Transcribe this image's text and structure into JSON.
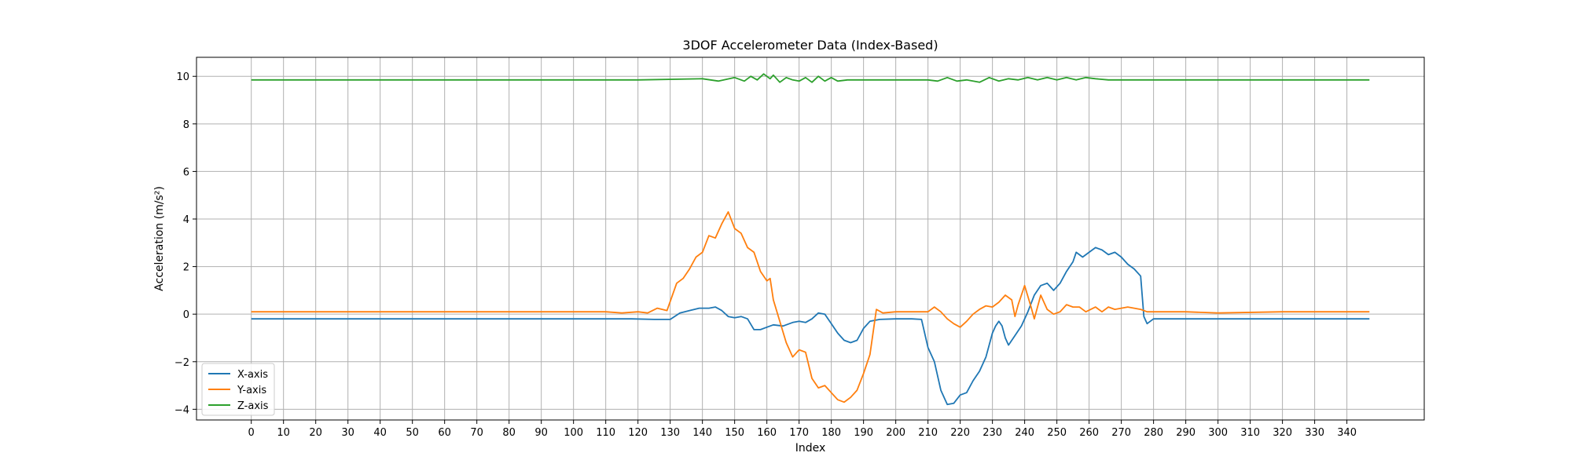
{
  "chart_data": {
    "type": "line",
    "title": "3DOF Accelerometer Data (Index-Based)",
    "xlabel": "Index",
    "ylabel": "Acceleration (m/s²)",
    "xlim": [
      -17,
      364
    ],
    "ylim": [
      -4.45,
      10.8
    ],
    "xticks": [
      0,
      10,
      20,
      30,
      40,
      50,
      60,
      70,
      80,
      90,
      100,
      110,
      120,
      130,
      140,
      150,
      160,
      170,
      180,
      190,
      200,
      210,
      220,
      230,
      240,
      250,
      260,
      270,
      280,
      290,
      300,
      310,
      320,
      330,
      340
    ],
    "yticks": [
      -4,
      -2,
      0,
      2,
      4,
      6,
      8,
      10
    ],
    "ytick_labels": [
      "−4",
      "−2",
      "0",
      "2",
      "4",
      "6",
      "8",
      "10"
    ],
    "grid": true,
    "legend_position": "lower-left",
    "series": [
      {
        "name": "X-axis",
        "color": "#1f77b4",
        "points": [
          [
            0,
            -0.2
          ],
          [
            20,
            -0.2
          ],
          [
            40,
            -0.2
          ],
          [
            60,
            -0.2
          ],
          [
            80,
            -0.2
          ],
          [
            100,
            -0.2
          ],
          [
            118,
            -0.2
          ],
          [
            125,
            -0.22
          ],
          [
            130,
            -0.22
          ],
          [
            133,
            0.05
          ],
          [
            136,
            0.15
          ],
          [
            139,
            0.25
          ],
          [
            142,
            0.25
          ],
          [
            144,
            0.3
          ],
          [
            146,
            0.15
          ],
          [
            148,
            -0.1
          ],
          [
            150,
            -0.15
          ],
          [
            152,
            -0.1
          ],
          [
            154,
            -0.2
          ],
          [
            156,
            -0.65
          ],
          [
            158,
            -0.65
          ],
          [
            160,
            -0.55
          ],
          [
            162,
            -0.45
          ],
          [
            165,
            -0.5
          ],
          [
            168,
            -0.35
          ],
          [
            170,
            -0.3
          ],
          [
            172,
            -0.35
          ],
          [
            174,
            -0.2
          ],
          [
            176,
            0.05
          ],
          [
            178,
            0.0
          ],
          [
            180,
            -0.4
          ],
          [
            182,
            -0.8
          ],
          [
            184,
            -1.1
          ],
          [
            186,
            -1.2
          ],
          [
            188,
            -1.1
          ],
          [
            190,
            -0.6
          ],
          [
            192,
            -0.3
          ],
          [
            195,
            -0.22
          ],
          [
            200,
            -0.2
          ],
          [
            205,
            -0.2
          ],
          [
            208,
            -0.22
          ],
          [
            210,
            -1.4
          ],
          [
            212,
            -2.0
          ],
          [
            214,
            -3.2
          ],
          [
            216,
            -3.8
          ],
          [
            218,
            -3.75
          ],
          [
            220,
            -3.4
          ],
          [
            222,
            -3.3
          ],
          [
            224,
            -2.8
          ],
          [
            226,
            -2.4
          ],
          [
            228,
            -1.8
          ],
          [
            230,
            -0.8
          ],
          [
            231,
            -0.5
          ],
          [
            232,
            -0.3
          ],
          [
            233,
            -0.5
          ],
          [
            234,
            -1.0
          ],
          [
            235,
            -1.3
          ],
          [
            237,
            -0.9
          ],
          [
            239,
            -0.5
          ],
          [
            241,
            0.1
          ],
          [
            243,
            0.8
          ],
          [
            245,
            1.2
          ],
          [
            247,
            1.3
          ],
          [
            249,
            1.0
          ],
          [
            251,
            1.3
          ],
          [
            253,
            1.8
          ],
          [
            255,
            2.2
          ],
          [
            256,
            2.6
          ],
          [
            258,
            2.4
          ],
          [
            260,
            2.6
          ],
          [
            262,
            2.8
          ],
          [
            264,
            2.7
          ],
          [
            266,
            2.5
          ],
          [
            268,
            2.6
          ],
          [
            270,
            2.4
          ],
          [
            272,
            2.1
          ],
          [
            274,
            1.9
          ],
          [
            276,
            1.6
          ],
          [
            277,
            -0.1
          ],
          [
            278,
            -0.4
          ],
          [
            280,
            -0.2
          ],
          [
            290,
            -0.2
          ],
          [
            300,
            -0.2
          ],
          [
            320,
            -0.2
          ],
          [
            340,
            -0.2
          ],
          [
            347,
            -0.2
          ]
        ]
      },
      {
        "name": "Y-axis",
        "color": "#ff7f0e",
        "points": [
          [
            0,
            0.1
          ],
          [
            20,
            0.1
          ],
          [
            40,
            0.1
          ],
          [
            60,
            0.1
          ],
          [
            80,
            0.1
          ],
          [
            100,
            0.1
          ],
          [
            110,
            0.1
          ],
          [
            115,
            0.05
          ],
          [
            120,
            0.1
          ],
          [
            123,
            0.05
          ],
          [
            126,
            0.25
          ],
          [
            129,
            0.15
          ],
          [
            132,
            1.3
          ],
          [
            134,
            1.5
          ],
          [
            136,
            1.9
          ],
          [
            138,
            2.4
          ],
          [
            140,
            2.6
          ],
          [
            142,
            3.3
          ],
          [
            144,
            3.2
          ],
          [
            146,
            3.8
          ],
          [
            148,
            4.3
          ],
          [
            150,
            3.6
          ],
          [
            152,
            3.4
          ],
          [
            154,
            2.8
          ],
          [
            156,
            2.6
          ],
          [
            158,
            1.8
          ],
          [
            160,
            1.4
          ],
          [
            161,
            1.5
          ],
          [
            162,
            0.6
          ],
          [
            164,
            -0.3
          ],
          [
            166,
            -1.2
          ],
          [
            168,
            -1.8
          ],
          [
            170,
            -1.5
          ],
          [
            172,
            -1.6
          ],
          [
            174,
            -2.7
          ],
          [
            176,
            -3.1
          ],
          [
            178,
            -3.0
          ],
          [
            180,
            -3.3
          ],
          [
            182,
            -3.6
          ],
          [
            184,
            -3.7
          ],
          [
            186,
            -3.5
          ],
          [
            188,
            -3.2
          ],
          [
            190,
            -2.5
          ],
          [
            192,
            -1.7
          ],
          [
            194,
            0.2
          ],
          [
            196,
            0.05
          ],
          [
            200,
            0.1
          ],
          [
            210,
            0.1
          ],
          [
            212,
            0.3
          ],
          [
            214,
            0.1
          ],
          [
            216,
            -0.2
          ],
          [
            218,
            -0.4
          ],
          [
            220,
            -0.55
          ],
          [
            222,
            -0.3
          ],
          [
            224,
            0.0
          ],
          [
            226,
            0.2
          ],
          [
            228,
            0.35
          ],
          [
            230,
            0.3
          ],
          [
            232,
            0.5
          ],
          [
            234,
            0.8
          ],
          [
            236,
            0.6
          ],
          [
            237,
            -0.1
          ],
          [
            238,
            0.4
          ],
          [
            240,
            1.2
          ],
          [
            242,
            0.3
          ],
          [
            243,
            -0.2
          ],
          [
            245,
            0.8
          ],
          [
            247,
            0.2
          ],
          [
            249,
            0.0
          ],
          [
            251,
            0.1
          ],
          [
            253,
            0.4
          ],
          [
            255,
            0.3
          ],
          [
            257,
            0.3
          ],
          [
            259,
            0.1
          ],
          [
            262,
            0.3
          ],
          [
            264,
            0.1
          ],
          [
            266,
            0.3
          ],
          [
            268,
            0.2
          ],
          [
            272,
            0.3
          ],
          [
            276,
            0.2
          ],
          [
            278,
            0.1
          ],
          [
            290,
            0.1
          ],
          [
            300,
            0.05
          ],
          [
            320,
            0.1
          ],
          [
            340,
            0.1
          ],
          [
            347,
            0.1
          ]
        ]
      },
      {
        "name": "Z-axis",
        "color": "#2ca02c",
        "points": [
          [
            0,
            9.85
          ],
          [
            20,
            9.85
          ],
          [
            40,
            9.85
          ],
          [
            60,
            9.85
          ],
          [
            80,
            9.85
          ],
          [
            100,
            9.85
          ],
          [
            120,
            9.85
          ],
          [
            140,
            9.9
          ],
          [
            145,
            9.8
          ],
          [
            150,
            9.95
          ],
          [
            153,
            9.8
          ],
          [
            155,
            10.0
          ],
          [
            157,
            9.85
          ],
          [
            159,
            10.1
          ],
          [
            161,
            9.9
          ],
          [
            162,
            10.05
          ],
          [
            164,
            9.75
          ],
          [
            166,
            9.95
          ],
          [
            168,
            9.85
          ],
          [
            170,
            9.8
          ],
          [
            172,
            9.95
          ],
          [
            174,
            9.75
          ],
          [
            176,
            10.0
          ],
          [
            178,
            9.8
          ],
          [
            180,
            9.95
          ],
          [
            182,
            9.8
          ],
          [
            185,
            9.85
          ],
          [
            190,
            9.85
          ],
          [
            200,
            9.85
          ],
          [
            210,
            9.85
          ],
          [
            213,
            9.8
          ],
          [
            216,
            9.95
          ],
          [
            219,
            9.8
          ],
          [
            222,
            9.85
          ],
          [
            226,
            9.75
          ],
          [
            229,
            9.95
          ],
          [
            232,
            9.8
          ],
          [
            235,
            9.9
          ],
          [
            238,
            9.85
          ],
          [
            241,
            9.95
          ],
          [
            244,
            9.85
          ],
          [
            247,
            9.95
          ],
          [
            250,
            9.85
          ],
          [
            253,
            9.95
          ],
          [
            256,
            9.85
          ],
          [
            259,
            9.95
          ],
          [
            262,
            9.9
          ],
          [
            266,
            9.85
          ],
          [
            280,
            9.85
          ],
          [
            300,
            9.85
          ],
          [
            320,
            9.85
          ],
          [
            340,
            9.85
          ],
          [
            347,
            9.85
          ]
        ]
      }
    ]
  }
}
